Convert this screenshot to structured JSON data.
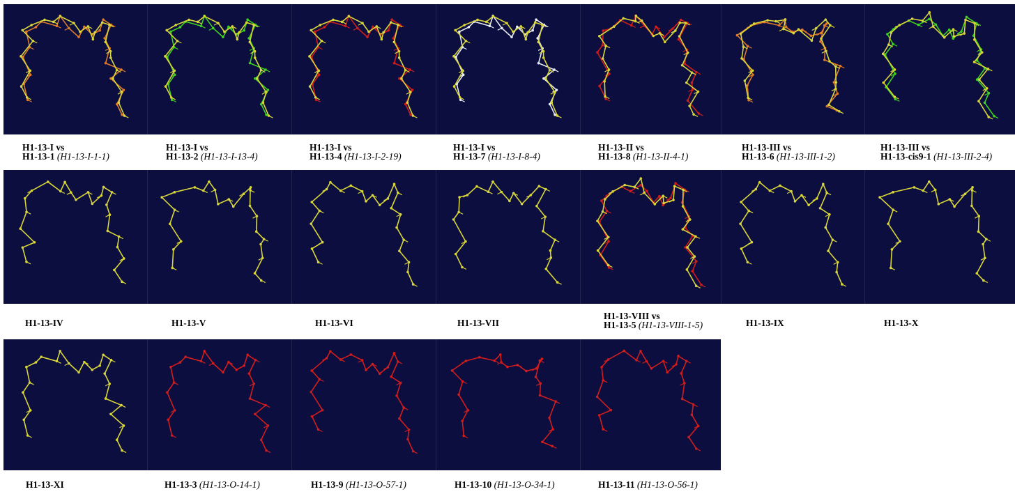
{
  "colors": {
    "background": "#0b0e3e",
    "yellow": "#d9d63a",
    "orange": "#e07a2a",
    "red": "#d11d1d",
    "green": "#3fd21e",
    "white": "#e8ecf5"
  },
  "panels": [
    {
      "id": "p1",
      "line1": "H1-13-I vs",
      "name": "H1-13-1",
      "code": "(H1-13-I-1-1)",
      "variant": 0,
      "s1": "orange",
      "s2": "yellow"
    },
    {
      "id": "p2",
      "line1": "H1-13-I vs",
      "name": "H1-13-2",
      "code": "(H1-13-I-13-4)",
      "variant": 0,
      "s1": "green",
      "s2": "yellow"
    },
    {
      "id": "p3",
      "line1": "H1-13-I vs",
      "name": "H1-13-4",
      "code": "(H1-13-I-2-19)",
      "variant": 0,
      "s1": "red",
      "s2": "yellow"
    },
    {
      "id": "p4",
      "line1": "H1-13-I vs",
      "name": "H1-13-7",
      "code": "(H1-13-I-8-4)",
      "variant": 0,
      "s1": "white",
      "s2": "yellow"
    },
    {
      "id": "p5",
      "line1": "H1-13-II vs",
      "name": "H1-13-8",
      "code": "(H1-13-II-4-1)",
      "variant": 1,
      "s1": "red",
      "s2": "yellow"
    },
    {
      "id": "p6",
      "line1": "H1-13-III vs",
      "name": "H1-13-6",
      "code": "(H1-13-III-1-2)",
      "variant": 2,
      "s1": "orange",
      "s2": "yellow"
    },
    {
      "id": "p7",
      "line1": "H1-13-III vs",
      "name": "H1-13-cis9-1",
      "code": "(H1-13-III-2-4)",
      "variant": 3,
      "s1": "green",
      "s2": "yellow"
    },
    {
      "id": "p8",
      "line1": "",
      "name": "H1-13-IV",
      "code": "",
      "variant": 4,
      "s1": "yellow"
    },
    {
      "id": "p9",
      "line1": "",
      "name": "H1-13-V",
      "code": "",
      "variant": 5,
      "s1": "yellow"
    },
    {
      "id": "p10",
      "line1": "",
      "name": "H1-13-VI",
      "code": "",
      "variant": 6,
      "s1": "yellow"
    },
    {
      "id": "p11",
      "line1": "",
      "name": "H1-13-VII",
      "code": "",
      "variant": 1,
      "s1": "yellow"
    },
    {
      "id": "p12",
      "line1": "H1-13-VIII vs",
      "name": "H1-13-5",
      "code": "(H1-13-VIII-1-5)",
      "variant": 3,
      "s1": "red",
      "s2": "yellow"
    },
    {
      "id": "p13",
      "line1": "",
      "name": "H1-13-IX",
      "code": "",
      "variant": 6,
      "s1": "yellow"
    },
    {
      "id": "p14",
      "line1": "",
      "name": "H1-13-X",
      "code": "",
      "variant": 5,
      "s1": "yellow"
    },
    {
      "id": "p15",
      "line1": "",
      "name": "H1-13-XI",
      "code": "",
      "variant": 0,
      "s1": "yellow"
    },
    {
      "id": "p16",
      "line1": "",
      "name": "H1-13-3",
      "code": "(H1-13-O-14-1)",
      "variant": 0,
      "s1": "red"
    },
    {
      "id": "p17",
      "line1": "",
      "name": "H1-13-9",
      "code": "(H1-13-O-57-1)",
      "variant": 6,
      "s1": "red"
    },
    {
      "id": "p18",
      "line1": "",
      "name": "H1-13-10",
      "code": "(H1-13-O-34-1)",
      "variant": 2,
      "s1": "red"
    },
    {
      "id": "p19",
      "line1": "",
      "name": "H1-13-11",
      "code": "(H1-13-O-56-1)",
      "variant": 4,
      "s1": "red"
    }
  ]
}
